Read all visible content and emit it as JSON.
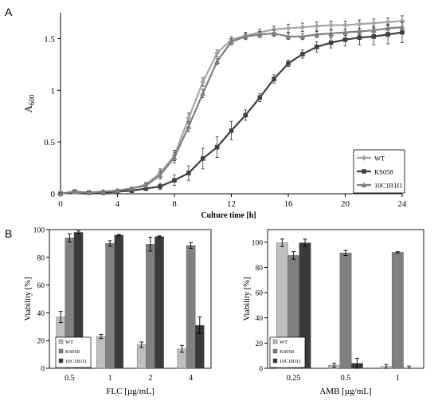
{
  "chart_data": [
    {
      "type": "line",
      "panel_label": "A",
      "xlabel": "Culture time [h]",
      "ylabel": "A600",
      "xlim": [
        0,
        24
      ],
      "ylim": [
        0,
        1.75
      ],
      "xticks": [
        "0",
        "4",
        "8",
        "12",
        "16",
        "20",
        "24"
      ],
      "yticks": [
        "0",
        "0.5",
        "1",
        "1.5"
      ],
      "grid": false,
      "legend_position": "bottom-right",
      "x": [
        0,
        1,
        2,
        3,
        4,
        5,
        6,
        7,
        8,
        9,
        10,
        11,
        12,
        13,
        14,
        15,
        16,
        17,
        18,
        19,
        20,
        21,
        22,
        23,
        24
      ],
      "series": [
        {
          "name": "WT",
          "color": "#a6a6a6",
          "marker": "diamond",
          "values": [
            0.0,
            0.02,
            0.01,
            0.02,
            0.03,
            0.05,
            0.09,
            0.2,
            0.37,
            0.73,
            1.08,
            1.36,
            1.49,
            1.53,
            1.56,
            1.59,
            1.6,
            1.61,
            1.62,
            1.63,
            1.63,
            1.64,
            1.65,
            1.66,
            1.67
          ],
          "errors": [
            0.01,
            0.01,
            0.01,
            0.01,
            0.01,
            0.01,
            0.02,
            0.04,
            0.05,
            0.05,
            0.04,
            0.03,
            0.03,
            0.03,
            0.03,
            0.03,
            0.04,
            0.04,
            0.04,
            0.04,
            0.04,
            0.04,
            0.04,
            0.04,
            0.05
          ]
        },
        {
          "name": "KS058",
          "color": "#404040",
          "marker": "square",
          "values": [
            0.0,
            0.02,
            0.01,
            0.01,
            0.02,
            0.03,
            0.05,
            0.07,
            0.13,
            0.2,
            0.34,
            0.45,
            0.61,
            0.76,
            0.93,
            1.11,
            1.26,
            1.35,
            1.42,
            1.46,
            1.49,
            1.51,
            1.52,
            1.54,
            1.56
          ],
          "errors": [
            0.01,
            0.01,
            0.01,
            0.01,
            0.01,
            0.01,
            0.02,
            0.03,
            0.05,
            0.07,
            0.1,
            0.1,
            0.09,
            0.05,
            0.04,
            0.04,
            0.03,
            0.04,
            0.05,
            0.05,
            0.06,
            0.07,
            0.08,
            0.09,
            0.1
          ]
        },
        {
          "name": "10C1B1I1",
          "color": "#7f7f7f",
          "marker": "triangle",
          "values": [
            0.0,
            0.02,
            0.01,
            0.02,
            0.03,
            0.05,
            0.08,
            0.18,
            0.35,
            0.65,
            0.97,
            1.28,
            1.47,
            1.52,
            1.54,
            1.55,
            1.52,
            1.52,
            1.54,
            1.55,
            1.56,
            1.57,
            1.58,
            1.6,
            1.61
          ],
          "errors": [
            0.01,
            0.01,
            0.01,
            0.01,
            0.01,
            0.01,
            0.02,
            0.04,
            0.05,
            0.05,
            0.04,
            0.03,
            0.03,
            0.03,
            0.03,
            0.03,
            0.03,
            0.03,
            0.03,
            0.03,
            0.03,
            0.03,
            0.04,
            0.04,
            0.05
          ]
        }
      ]
    },
    {
      "type": "bar",
      "panel_label": "B",
      "xlabel": "FLC [µg/mL]",
      "ylabel": "Viability  [%]",
      "ylim": [
        0,
        100
      ],
      "yticks": [
        "0",
        "20",
        "40",
        "60",
        "80",
        "100"
      ],
      "categories": [
        "0.5",
        "1",
        "2",
        "4"
      ],
      "grid": false,
      "legend_position": "bottom-left",
      "series": [
        {
          "name": "WT",
          "color": "#bfbfbf",
          "values": [
            37,
            23,
            17,
            14
          ],
          "errors": [
            4,
            1.5,
            2,
            2.5
          ]
        },
        {
          "name": "KS058",
          "color": "#808080",
          "values": [
            94,
            90,
            89.5,
            88.5
          ],
          "errors": [
            3,
            2,
            5,
            2
          ]
        },
        {
          "name": "10C1B1I1",
          "color": "#3a3a3a",
          "values": [
            98,
            96,
            95,
            31
          ],
          "errors": [
            1,
            0.5,
            0.5,
            6
          ]
        }
      ]
    },
    {
      "type": "bar",
      "xlabel": "AMB [µg/mL]",
      "ylabel": "Viability  [%]",
      "ylim": [
        0,
        110
      ],
      "yticks": [
        "0",
        "20",
        "40",
        "60",
        "80",
        "100"
      ],
      "categories": [
        "0.25",
        "0.5",
        "1"
      ],
      "grid": false,
      "legend_position": "bottom-left",
      "series": [
        {
          "name": "WT",
          "color": "#bfbfbf",
          "values": [
            99.5,
            2.5,
            1.5
          ],
          "errors": [
            3,
            1.5,
            1.5
          ]
        },
        {
          "name": "KS058",
          "color": "#808080",
          "values": [
            89.5,
            91.5,
            92
          ],
          "errors": [
            3,
            2,
            0.5
          ]
        },
        {
          "name": "10C1B1I1",
          "color": "#3a3a3a",
          "values": [
            99.5,
            4,
            0.3
          ],
          "errors": [
            3,
            4,
            1.5
          ]
        }
      ]
    }
  ]
}
